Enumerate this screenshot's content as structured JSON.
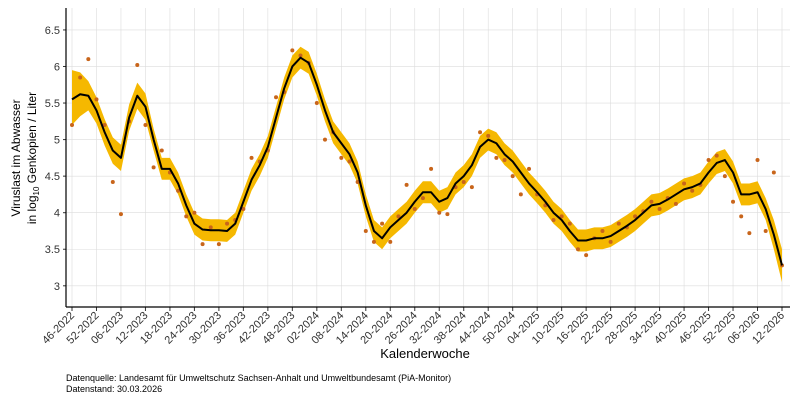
{
  "chart_data": {
    "type": "line",
    "x_label": "Kalenderwoche",
    "y_label": {
      "line1": "Viruslast im Abwasser",
      "pre": "in  log",
      "sub": "10",
      "post": " Genkopien / Liter"
    },
    "footnotes": [
      "Datenquelle: Landesamt für Umweltschutz Sachsen-Anhalt und Umweltbundesamt (PiA-Monitor)",
      "Datenstand: 30.03.2026"
    ],
    "categories": [
      "46-2022",
      null,
      null,
      "52-2022",
      null,
      null,
      "06-2023",
      null,
      null,
      "12-2023",
      null,
      null,
      "18-2023",
      null,
      null,
      "24-2023",
      null,
      null,
      "30-2023",
      null,
      null,
      "36-2023",
      null,
      null,
      "42-2023",
      null,
      null,
      "48-2023",
      null,
      null,
      "02-2024",
      null,
      null,
      "08-2024",
      null,
      null,
      "14-2024",
      null,
      null,
      "20-2024",
      null,
      null,
      "26-2024",
      null,
      null,
      "32-2024",
      null,
      null,
      "38-2024",
      null,
      null,
      "44-2024",
      null,
      null,
      "50-2024",
      null,
      null,
      "04-2025",
      null,
      null,
      "10-2025",
      null,
      null,
      "16-2025",
      null,
      null,
      "22-2025",
      null,
      null,
      "28-2025",
      null,
      null,
      "34-2025",
      null,
      null,
      "40-2025",
      null,
      null,
      "46-2025",
      null,
      null,
      "52-2025",
      null,
      null,
      "06-2026",
      null,
      null,
      "12-2026"
    ],
    "line": {
      "color": "#000000",
      "values": [
        5.55,
        5.62,
        5.6,
        5.4,
        5.1,
        4.85,
        4.75,
        5.3,
        5.6,
        5.45,
        5.0,
        4.6,
        4.6,
        4.4,
        4.1,
        3.85,
        3.77,
        3.76,
        3.76,
        3.75,
        3.85,
        4.15,
        4.45,
        4.65,
        4.9,
        5.3,
        5.7,
        6.0,
        6.12,
        6.05,
        5.75,
        5.4,
        5.1,
        4.95,
        4.8,
        4.55,
        4.1,
        3.75,
        3.65,
        3.8,
        3.9,
        4.0,
        4.15,
        4.28,
        4.28,
        4.15,
        4.2,
        4.4,
        4.5,
        4.65,
        4.9,
        5.0,
        4.95,
        4.8,
        4.7,
        4.55,
        4.4,
        4.28,
        4.15,
        4.0,
        3.9,
        3.75,
        3.62,
        3.62,
        3.65,
        3.65,
        3.68,
        3.75,
        3.82,
        3.9,
        4.0,
        4.1,
        4.12,
        4.18,
        4.25,
        4.32,
        4.35,
        4.4,
        4.55,
        4.68,
        4.72,
        4.55,
        4.25,
        4.25,
        4.28,
        4.05,
        3.7,
        3.28
      ]
    },
    "band": {
      "color": "#f5b800",
      "lower": [
        5.2,
        5.32,
        5.4,
        5.22,
        4.92,
        4.67,
        4.57,
        5.12,
        5.42,
        5.27,
        4.85,
        4.45,
        4.45,
        4.25,
        3.95,
        3.7,
        3.62,
        3.61,
        3.61,
        3.6,
        3.7,
        4.0,
        4.3,
        4.5,
        4.75,
        5.15,
        5.55,
        5.85,
        5.97,
        5.9,
        5.6,
        5.25,
        4.95,
        4.8,
        4.65,
        4.4,
        3.95,
        3.6,
        3.5,
        3.65,
        3.75,
        3.85,
        4.0,
        4.13,
        4.13,
        4.0,
        4.05,
        4.25,
        4.35,
        4.5,
        4.75,
        4.85,
        4.8,
        4.65,
        4.55,
        4.4,
        4.25,
        4.13,
        4.0,
        3.85,
        3.75,
        3.6,
        3.47,
        3.47,
        3.5,
        3.5,
        3.53,
        3.6,
        3.67,
        3.75,
        3.85,
        3.95,
        3.97,
        4.03,
        4.1,
        4.17,
        4.2,
        4.25,
        4.4,
        4.53,
        4.57,
        4.4,
        4.1,
        4.1,
        4.13,
        3.9,
        3.5,
        3.05
      ],
      "upper": [
        5.95,
        5.92,
        5.8,
        5.58,
        5.28,
        5.03,
        4.93,
        5.48,
        5.78,
        5.63,
        5.15,
        4.75,
        4.75,
        4.55,
        4.25,
        4.0,
        3.92,
        3.91,
        3.91,
        3.9,
        4.0,
        4.3,
        4.6,
        4.8,
        5.05,
        5.45,
        5.85,
        6.15,
        6.27,
        6.2,
        5.9,
        5.55,
        5.25,
        5.1,
        4.95,
        4.7,
        4.25,
        3.9,
        3.8,
        3.95,
        4.05,
        4.15,
        4.3,
        4.43,
        4.43,
        4.3,
        4.35,
        4.55,
        4.65,
        4.8,
        5.05,
        5.15,
        5.1,
        4.95,
        4.85,
        4.7,
        4.55,
        4.43,
        4.3,
        4.15,
        4.05,
        3.9,
        3.77,
        3.77,
        3.8,
        3.8,
        3.83,
        3.9,
        3.97,
        4.05,
        4.15,
        4.25,
        4.27,
        4.33,
        4.4,
        4.47,
        4.5,
        4.55,
        4.7,
        4.83,
        4.87,
        4.7,
        4.4,
        4.4,
        4.43,
        4.2,
        3.9,
        3.5
      ]
    },
    "points": {
      "color": "#c8651b",
      "values": [
        5.2,
        5.85,
        6.1,
        5.55,
        5.2,
        4.42,
        3.98,
        5.25,
        6.02,
        5.2,
        4.62,
        4.85,
        4.55,
        4.3,
        3.95,
        4.0,
        3.57,
        3.8,
        3.57,
        3.85,
        3.9,
        4.05,
        4.75,
        4.7,
        4.85,
        5.58,
        5.65,
        6.22,
        6.15,
        6.05,
        5.5,
        5.0,
        5.1,
        4.75,
        4.7,
        4.42,
        3.75,
        3.6,
        3.85,
        3.6,
        3.95,
        4.38,
        4.05,
        4.2,
        4.6,
        4.0,
        3.98,
        4.35,
        4.42,
        4.35,
        5.1,
        5.05,
        4.75,
        4.72,
        4.5,
        4.25,
        4.6,
        4.25,
        4.1,
        3.9,
        3.95,
        3.85,
        3.5,
        3.42,
        3.65,
        3.75,
        3.6,
        3.85,
        3.8,
        3.95,
        4.02,
        4.15,
        4.05,
        4.2,
        4.12,
        4.4,
        4.3,
        4.38,
        4.72,
        4.78,
        4.5,
        4.15,
        3.95,
        3.72,
        4.72,
        3.75,
        4.55,
        3.28
      ]
    },
    "ylim": [
      2.71,
      6.8
    ],
    "yticks": [
      3,
      3.5,
      4,
      4.5,
      5,
      5.5,
      6,
      6.5
    ],
    "grid": true
  }
}
